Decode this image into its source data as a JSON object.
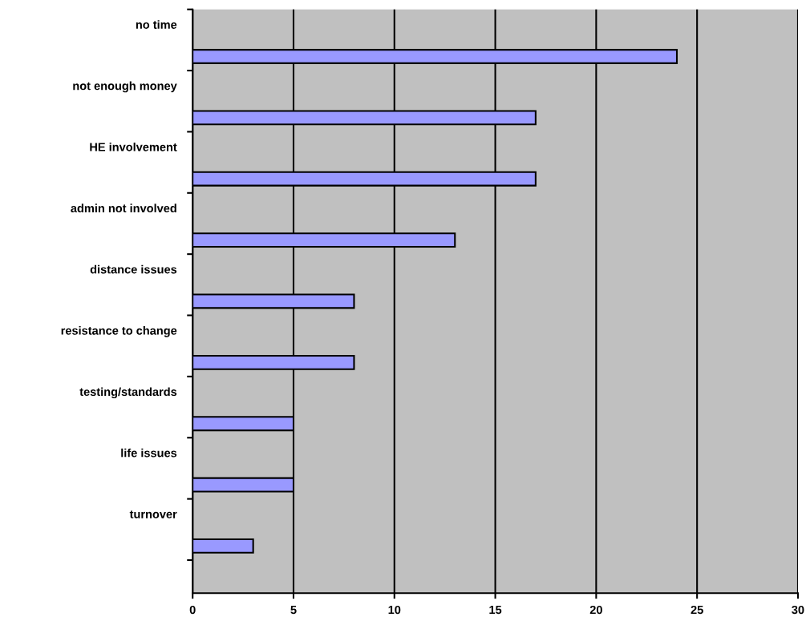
{
  "chart_data": {
    "type": "bar",
    "orientation": "horizontal",
    "categories": [
      "no time",
      "not enough money",
      "HE involvement",
      "admin not involved",
      "distance issues",
      "resistance to change",
      "testing/standards",
      "life issues",
      "turnover"
    ],
    "values": [
      24,
      17,
      17,
      13,
      8,
      8,
      5,
      5,
      3
    ],
    "color": "#9999ff",
    "xlim": [
      0,
      30
    ],
    "xticks": [
      0,
      5,
      10,
      15,
      20,
      25,
      30
    ],
    "grid": "x"
  }
}
